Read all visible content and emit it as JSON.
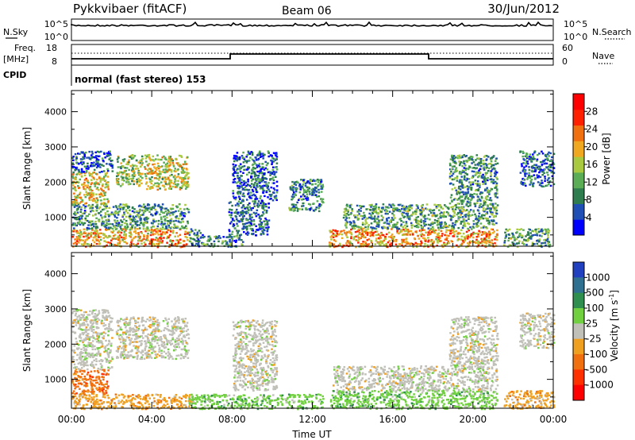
{
  "header": {
    "station": "Pykkvibaer (fitACF)",
    "beam": "Beam 06",
    "date": "30/Jun/2012"
  },
  "top_panels": {
    "nsky_label": "N.Sky",
    "nsky_ticks": [
      "10^5",
      "10^0"
    ],
    "nsearch_label": "N.Search",
    "nsearch_ticks": [
      "10^5",
      "10^0"
    ],
    "freq_label": "Freq.",
    "freq_unit": "[MHz]",
    "freq_ticks": [
      "18",
      "8"
    ],
    "nave_label": "Nave",
    "nave_ticks": [
      "60",
      "0"
    ],
    "cpid_label": "CPID",
    "cpid_text": "normal (fast stereo) 153"
  },
  "chart_data": [
    {
      "type": "heatmap",
      "name": "power-panel",
      "xlabel": "",
      "ylabel": "Slant Range [km]",
      "x_range_hours": [
        0,
        24
      ],
      "ylim": [
        180,
        4600
      ],
      "yticks": [
        1000,
        2000,
        3000,
        4000
      ],
      "colorbar": {
        "label": "Power [dB]",
        "range": [
          0,
          32
        ],
        "ticks": [
          4,
          8,
          12,
          16,
          20,
          24,
          28
        ],
        "colors": [
          "#0000ff",
          "#1f4fb4",
          "#2e7d4f",
          "#5aac55",
          "#a8c940",
          "#f0a820",
          "#f07010",
          "#ff2000",
          "#ff0000"
        ]
      },
      "regions": [
        {
          "x": [
            0.0,
            5.8
          ],
          "y": [
            180,
            700
          ],
          "level": 20
        },
        {
          "x": [
            0.0,
            5.8
          ],
          "y": [
            700,
            1400
          ],
          "level": 10
        },
        {
          "x": [
            0.0,
            1.8
          ],
          "y": [
            1400,
            2300
          ],
          "level": 18
        },
        {
          "x": [
            0.0,
            2.0
          ],
          "y": [
            2300,
            2900
          ],
          "level": 6
        },
        {
          "x": [
            2.2,
            3.5
          ],
          "y": [
            1900,
            2800
          ],
          "level": 14
        },
        {
          "x": [
            3.6,
            5.8
          ],
          "y": [
            1800,
            2800
          ],
          "level": 17
        },
        {
          "x": [
            5.8,
            6.5
          ],
          "y": [
            180,
            700
          ],
          "level": 8
        },
        {
          "x": [
            6.5,
            8.5
          ],
          "y": [
            180,
            500
          ],
          "level": 10
        },
        {
          "x": [
            7.8,
            9.8
          ],
          "y": [
            500,
            1500
          ],
          "level": 7
        },
        {
          "x": [
            8.0,
            10.2
          ],
          "y": [
            1500,
            2900
          ],
          "level": 6
        },
        {
          "x": [
            10.8,
            12.5
          ],
          "y": [
            1200,
            2100
          ],
          "level": 9
        },
        {
          "x": [
            12.8,
            21.2
          ],
          "y": [
            180,
            700
          ],
          "level": 21
        },
        {
          "x": [
            13.5,
            21.2
          ],
          "y": [
            700,
            1400
          ],
          "level": 11
        },
        {
          "x": [
            18.8,
            21.2
          ],
          "y": [
            1400,
            2800
          ],
          "level": 10
        },
        {
          "x": [
            21.5,
            23.8
          ],
          "y": [
            180,
            700
          ],
          "level": 11
        },
        {
          "x": [
            22.3,
            24.0
          ],
          "y": [
            1900,
            2900
          ],
          "level": 7
        }
      ]
    },
    {
      "type": "heatmap",
      "name": "velocity-panel",
      "xlabel": "Time UT",
      "ylabel": "Slant Range [km]",
      "x_range_hours": [
        0,
        24
      ],
      "xticks": [
        "00:00",
        "04:00",
        "08:00",
        "12:00",
        "16:00",
        "20:00",
        "00:00"
      ],
      "ylim": [
        180,
        4600
      ],
      "yticks": [
        1000,
        2000,
        3000,
        4000
      ],
      "colorbar": {
        "label": "Velocity [m s^-1]",
        "ticks": [
          "1000",
          "500",
          "100",
          "25",
          "-25",
          "-100",
          "-500",
          "-1000"
        ],
        "colors": [
          "#2040c0",
          "#2f6f8f",
          "#2f8f4f",
          "#70d040",
          "#c0c0b8",
          "#f0a020",
          "#f07010",
          "#ff3000",
          "#ff0000"
        ]
      },
      "regions": [
        {
          "x": [
            0.0,
            6.0
          ],
          "y": [
            180,
            600
          ],
          "level": "-100"
        },
        {
          "x": [
            0.0,
            1.8
          ],
          "y": [
            600,
            1300
          ],
          "level": "-500"
        },
        {
          "x": [
            0.0,
            2.0
          ],
          "y": [
            1300,
            3000
          ],
          "level": "25"
        },
        {
          "x": [
            2.2,
            5.8
          ],
          "y": [
            1600,
            2800
          ],
          "level": "25"
        },
        {
          "x": [
            5.8,
            12.5
          ],
          "y": [
            180,
            600
          ],
          "level": "100"
        },
        {
          "x": [
            8.0,
            10.2
          ],
          "y": [
            700,
            2700
          ],
          "level": "25"
        },
        {
          "x": [
            12.8,
            21.2
          ],
          "y": [
            180,
            700
          ],
          "level": "100"
        },
        {
          "x": [
            13.0,
            21.2
          ],
          "y": [
            700,
            1400
          ],
          "level": "25"
        },
        {
          "x": [
            18.8,
            21.2
          ],
          "y": [
            1400,
            2800
          ],
          "level": "25"
        },
        {
          "x": [
            21.5,
            24.0
          ],
          "y": [
            180,
            700
          ],
          "level": "-100"
        },
        {
          "x": [
            22.3,
            24.0
          ],
          "y": [
            1900,
            2900
          ],
          "level": "25"
        }
      ]
    }
  ]
}
